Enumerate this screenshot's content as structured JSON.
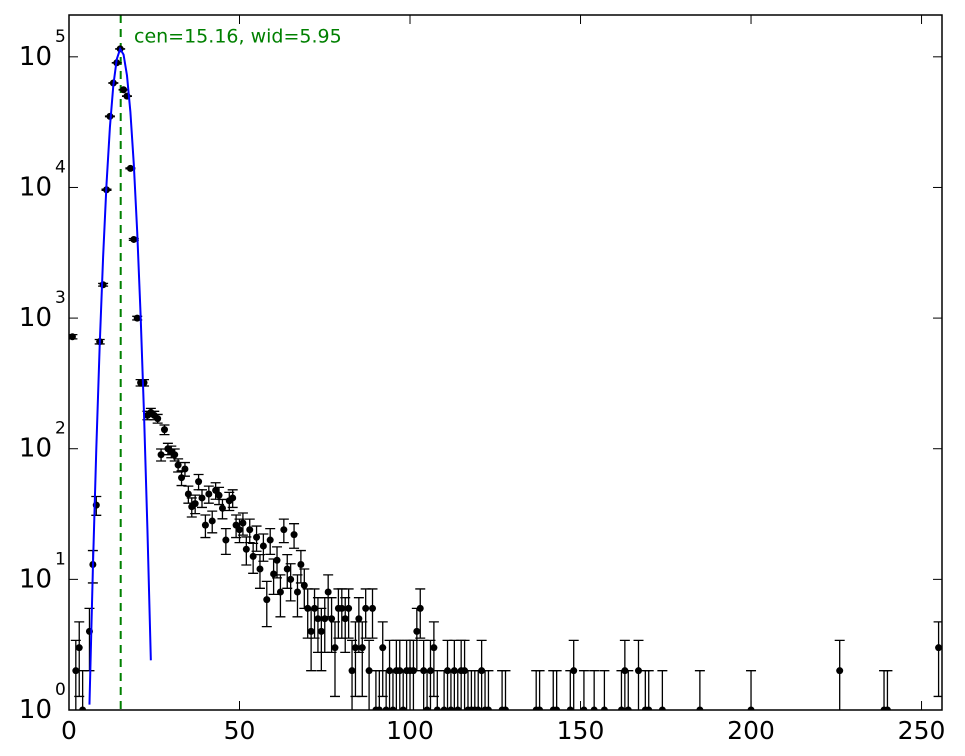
{
  "chart_data": {
    "type": "errorbar",
    "annotation": "cen=15.16, wid=5.95",
    "vline": {
      "x": 15.16,
      "color": "#008000"
    },
    "log_y": true,
    "xlim": [
      0,
      256
    ],
    "ylim": [
      1,
      209000
    ],
    "xticks": [
      0,
      50,
      100,
      150,
      200,
      250
    ],
    "yticks": [
      {
        "value": 1,
        "label": "10",
        "power": "0"
      },
      {
        "value": 10,
        "label": "10",
        "power": "1"
      },
      {
        "value": 100,
        "label": "10",
        "power": "2"
      },
      {
        "value": 1000,
        "label": "10",
        "power": "3"
      },
      {
        "value": 10000,
        "label": "10",
        "power": "4"
      },
      {
        "value": 100000,
        "label": "10",
        "power": "5"
      }
    ],
    "series": [
      {
        "type": "errorbar",
        "color": "#000000",
        "x": [
          1,
          2,
          3,
          4,
          6,
          7,
          8,
          9,
          10,
          11,
          12,
          13,
          14,
          15,
          16,
          17,
          18,
          19,
          20,
          21,
          22,
          23,
          24,
          25,
          26,
          27,
          28,
          29,
          30,
          31,
          32,
          33,
          34,
          35,
          36,
          37,
          38,
          39,
          40,
          41,
          42,
          43,
          44,
          45,
          46,
          47,
          48,
          49,
          50,
          51,
          52,
          53,
          54,
          55,
          56,
          57,
          58,
          59,
          60,
          61,
          62,
          63,
          64,
          65,
          66,
          67,
          68,
          69,
          70,
          71,
          72,
          73,
          74,
          75,
          76,
          77,
          78,
          79,
          80,
          81,
          82,
          83,
          84,
          85,
          86,
          87,
          88,
          89,
          90,
          91,
          92,
          93,
          94,
          95,
          96,
          97,
          98,
          99,
          100,
          101,
          102,
          103,
          104,
          105,
          106,
          107,
          108,
          110,
          111,
          112,
          113,
          114,
          115,
          116,
          117,
          118,
          119,
          120,
          121,
          122,
          123,
          127,
          128,
          137,
          138,
          142,
          143,
          147,
          148,
          151,
          154,
          157,
          162,
          163,
          164,
          167,
          169,
          170,
          174,
          185,
          200,
          226,
          239,
          240,
          255
        ],
        "values": [
          720,
          2,
          3,
          1,
          4,
          13,
          37,
          660,
          1800,
          9600,
          35000,
          63000,
          90000,
          115000,
          56000,
          50000,
          14000,
          4000,
          1000,
          320,
          320,
          180,
          190,
          180,
          170,
          90,
          140,
          100,
          95,
          90,
          75,
          60,
          70,
          45,
          36,
          38,
          56,
          42,
          26,
          45,
          28,
          48,
          44,
          35,
          20,
          40,
          42,
          26,
          24,
          27,
          17,
          24,
          15,
          21,
          12,
          18,
          7,
          20,
          11,
          14,
          8,
          24,
          12,
          10,
          22,
          8,
          13,
          9,
          6,
          4,
          6,
          5,
          4,
          5,
          8,
          5,
          3,
          6,
          6,
          5,
          6,
          2,
          3,
          5,
          3,
          6,
          2,
          6,
          1,
          1,
          3,
          1,
          2,
          1,
          2,
          2,
          1,
          2,
          2,
          2,
          4,
          6,
          2,
          1,
          2,
          3,
          1,
          1,
          2,
          1,
          2,
          1,
          2,
          2,
          1,
          1,
          1,
          1,
          2,
          1,
          1,
          1,
          1,
          1,
          1,
          1,
          1,
          1,
          2,
          1,
          1,
          1,
          1,
          2,
          1,
          2,
          1,
          1,
          1,
          1,
          1,
          2,
          1,
          1,
          3
        ],
        "errors": [
          26.83,
          1.41,
          1.73,
          1,
          2,
          3.61,
          6.08,
          25.69,
          42.43,
          97.98,
          187.08,
          250.99,
          300,
          339.12,
          236.64,
          223.61,
          118.32,
          63.25,
          31.62,
          17.89,
          17.89,
          13.42,
          13.78,
          13.42,
          13.04,
          9.49,
          11.83,
          10,
          9.75,
          9.49,
          8.66,
          7.75,
          8.37,
          6.71,
          6,
          6.16,
          7.48,
          6.48,
          5.1,
          6.71,
          5.29,
          6.93,
          6.63,
          5.92,
          4.47,
          6.32,
          6.48,
          5.1,
          4.9,
          5.2,
          4.12,
          4.9,
          3.87,
          4.58,
          3.46,
          4.24,
          2.65,
          4.47,
          3.32,
          3.74,
          2.83,
          4.9,
          3.46,
          3.16,
          4.69,
          2.83,
          3.61,
          3,
          2.45,
          2,
          2.45,
          2.24,
          2,
          2.24,
          2.83,
          2.24,
          1.73,
          2.45,
          2.45,
          2.24,
          2.45,
          1.41,
          1.73,
          2.24,
          1.73,
          2.45,
          1.41,
          2.45,
          1,
          1,
          1.73,
          1,
          1.41,
          1,
          1.41,
          1.41,
          1,
          1.41,
          1.41,
          1.41,
          2,
          2.45,
          1.41,
          1,
          1.41,
          1.73,
          1,
          1,
          1.41,
          1,
          1.41,
          1,
          1.41,
          1.41,
          1,
          1,
          1,
          1,
          1.41,
          1,
          1,
          1,
          1,
          1,
          1,
          1,
          1,
          1,
          1.41,
          1,
          1,
          1,
          1,
          1.41,
          1,
          1.41,
          1,
          1,
          1,
          1,
          1,
          1.41,
          1,
          1,
          1.73
        ]
      },
      {
        "type": "line",
        "color": "#0000ff",
        "x": [
          6,
          7,
          8,
          9,
          10,
          11,
          12,
          13,
          14,
          15,
          16,
          17,
          18,
          19,
          20,
          21,
          22,
          23,
          24
        ],
        "values": [
          1.1,
          12,
          99,
          617,
          2930,
          10600,
          29000,
          60500,
          95600,
          115000,
          104000,
          72100,
          37900,
          15100,
          4570,
          1050,
          184,
          24,
          2.4
        ]
      }
    ]
  }
}
